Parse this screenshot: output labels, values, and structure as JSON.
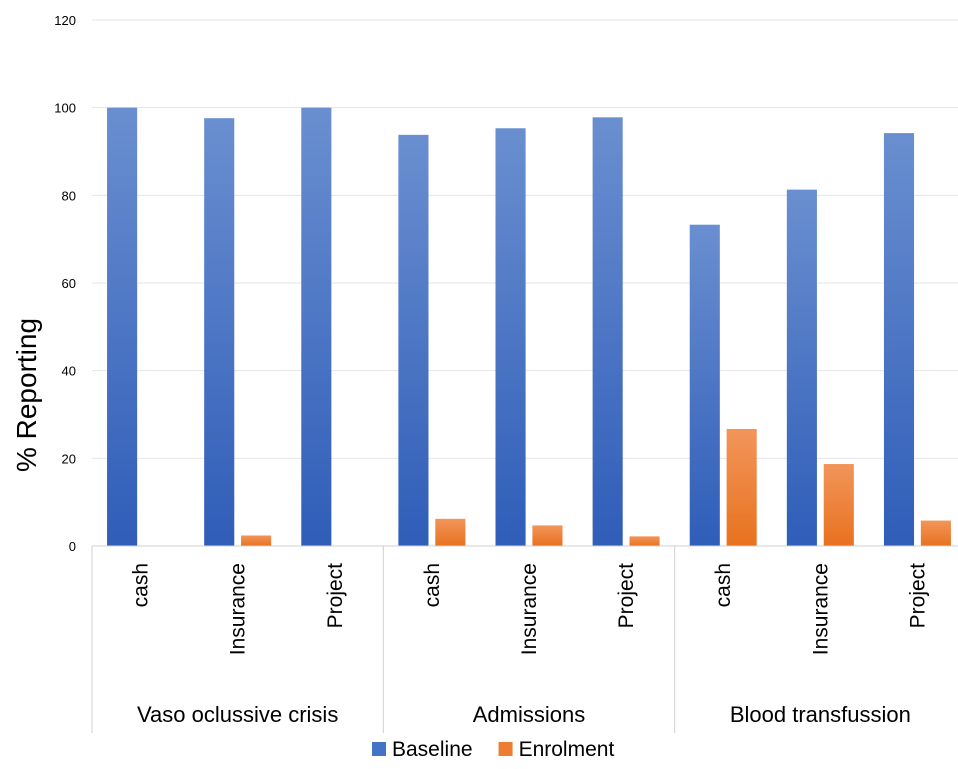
{
  "chart_data": {
    "type": "bar",
    "title": "",
    "ylabel": "% Reporting",
    "xlabel": "",
    "ylim": [
      0,
      120
    ],
    "yticks": [
      0,
      20,
      40,
      60,
      80,
      100,
      120
    ],
    "grid": true,
    "legend_position": "bottom",
    "groups": [
      {
        "label": "Vaso oclussive crisis",
        "categories": [
          "cash",
          "Insurance",
          "Project"
        ]
      },
      {
        "label": "Admissions",
        "categories": [
          "cash",
          "Insurance",
          "Project"
        ]
      },
      {
        "label": "Blood transfussion",
        "categories": [
          "cash",
          "Insurance",
          "Project"
        ]
      }
    ],
    "series": [
      {
        "name": "Baseline",
        "color": "#4472C4",
        "values": [
          100,
          97.6,
          100,
          93.8,
          95.3,
          97.8,
          73.3,
          81.3,
          94.2
        ]
      },
      {
        "name": "Enrolment",
        "color": "#ED7D31",
        "values": [
          0,
          2.4,
          0,
          6.2,
          4.7,
          2.2,
          26.7,
          18.7,
          5.8
        ]
      }
    ]
  }
}
